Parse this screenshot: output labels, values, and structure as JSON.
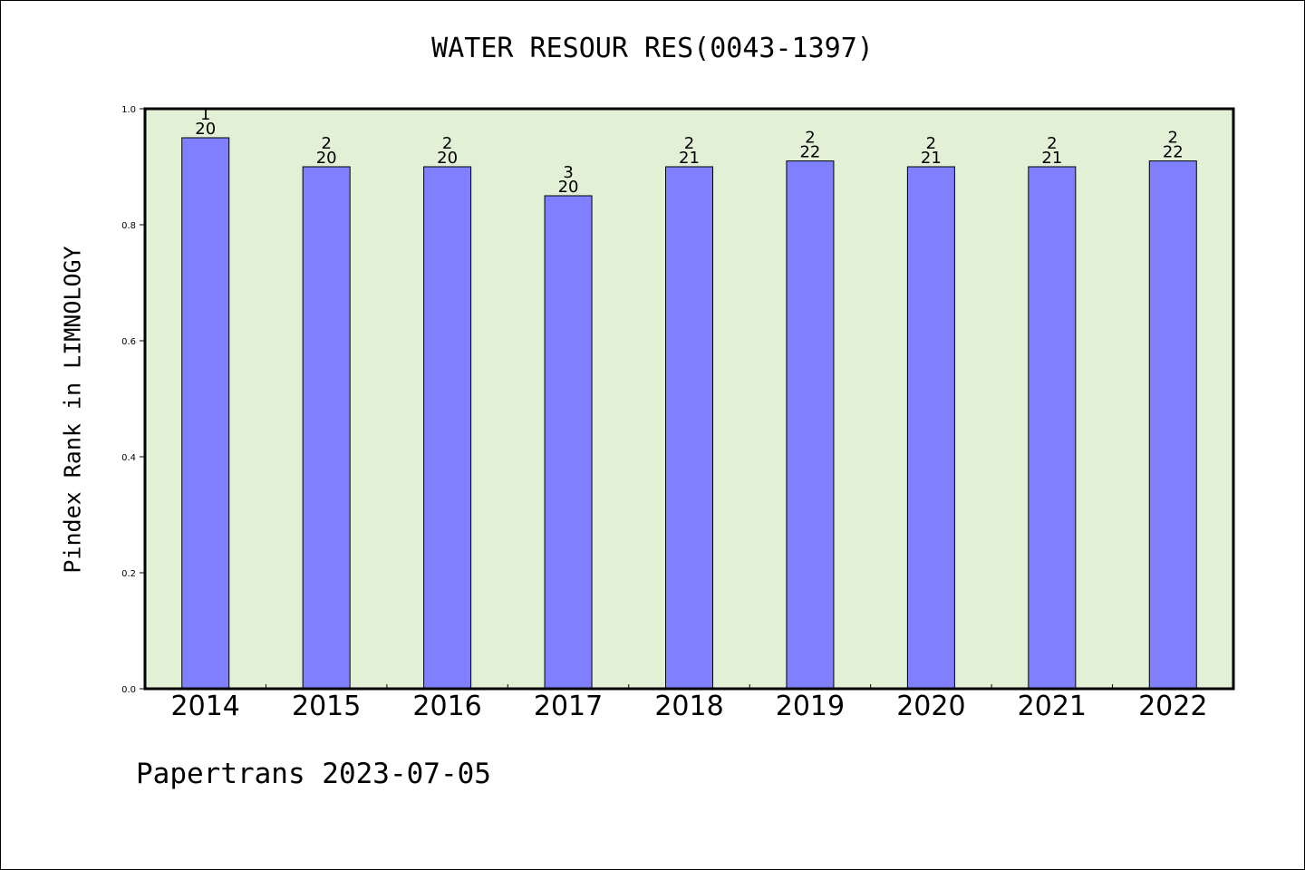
{
  "chart_data": {
    "type": "bar",
    "title": "WATER RESOUR RES(0043-1397)",
    "xlabel": "",
    "ylabel": "Pindex Rank in LIMNOLOGY",
    "categories": [
      "2014",
      "2015",
      "2016",
      "2017",
      "2018",
      "2019",
      "2020",
      "2021",
      "2022"
    ],
    "values": [
      0.95,
      0.9,
      0.9,
      0.85,
      0.9,
      0.91,
      0.9,
      0.9,
      0.91
    ],
    "rank_labels": [
      "1",
      "2",
      "2",
      "3",
      "2",
      "2",
      "2",
      "2",
      "2"
    ],
    "count_labels": [
      "20",
      "20",
      "20",
      "20",
      "21",
      "22",
      "21",
      "21",
      "22"
    ],
    "ylim": [
      0,
      1.0
    ],
    "y_ticks": [
      "0.0",
      "0.2",
      "0.4",
      "0.6",
      "0.8",
      "1.0"
    ],
    "grid": false,
    "legend": "none",
    "colors": {
      "bar": "#8080ff",
      "plot_background": "#e2f0d6",
      "axis": "#000000"
    }
  },
  "footer": {
    "note": "Papertrans 2023-07-05"
  }
}
